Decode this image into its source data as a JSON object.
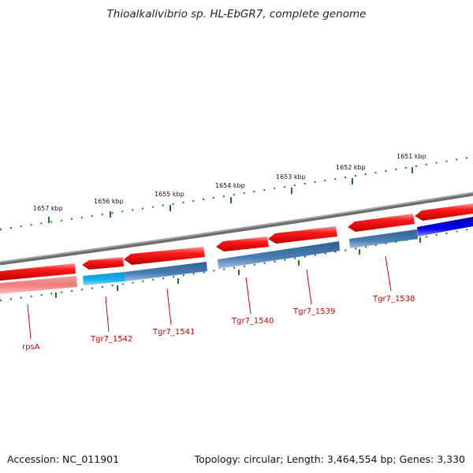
{
  "title": "Thioalkalivibrio sp. HL-EbGR7, complete genome",
  "footer": {
    "accession": "Accession: NC_011901",
    "stats": "Topology: circular; Length: 3,464,554 bp; Genes: 3,330"
  },
  "colors": {
    "backbone": "#7a7a7a",
    "gene_red": "#ee1111",
    "gene_pink": "#f08080",
    "band_blue": "#4a7fb5",
    "band_cyan": "#19b4ee",
    "band_darkblue": "#0000ee",
    "tick": "#1a7a1a",
    "label": "#cc0000"
  },
  "scale_labels": [
    "1657 kbp",
    "1656 kbp",
    "1655 kbp",
    "1654 kbp",
    "1653 kbp",
    "1652 kbp",
    "1651 kbp"
  ],
  "gene_labels": [
    "rpsA",
    "Tgr7_1542",
    "Tgr7_1541",
    "Tgr7_1540",
    "Tgr7_1539",
    "Tgr7_1538"
  ]
}
